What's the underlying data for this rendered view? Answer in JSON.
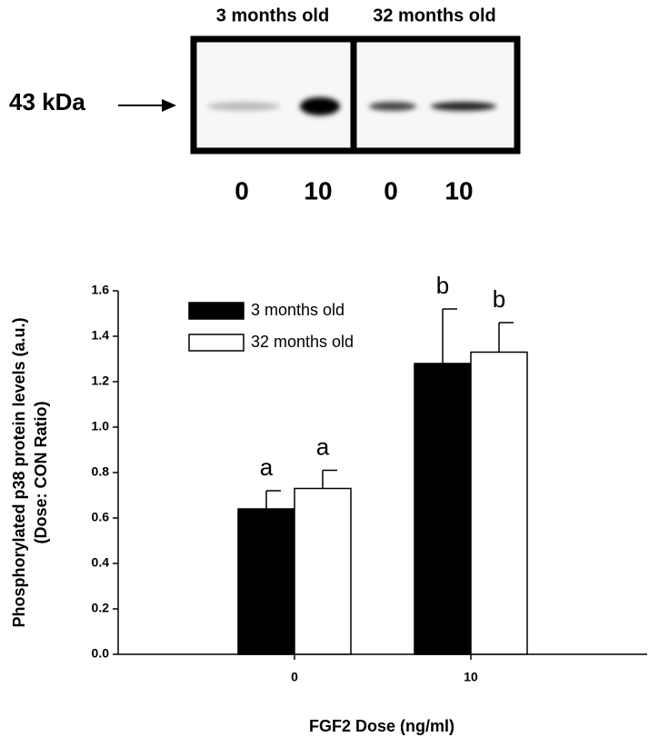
{
  "blot": {
    "groups": [
      "3 months old",
      "32 months old"
    ],
    "marker": "43 kDa",
    "lanes": [
      "0",
      "10",
      "0",
      "10"
    ]
  },
  "chart_data": {
    "type": "bar",
    "ylabel": [
      "Phosphorylated p38 protein levels (a.u.)",
      "(Dose: CON Ratio)"
    ],
    "xlabel": "FGF2 Dose (ng/ml)",
    "categories": [
      "0",
      "10"
    ],
    "series": [
      {
        "name": "3 months old",
        "color": "#000000",
        "values": [
          0.64,
          1.28
        ],
        "errors": [
          0.08,
          0.24
        ],
        "labels": [
          "a",
          "b"
        ]
      },
      {
        "name": "32 months old",
        "color": "#ffffff",
        "values": [
          0.73,
          1.33
        ],
        "errors": [
          0.08,
          0.13
        ],
        "labels": [
          "a",
          "b"
        ]
      }
    ],
    "ylim": [
      0,
      1.6
    ],
    "yticks": [
      {
        "value": 0,
        "label": "0.0"
      },
      0.2,
      0.4,
      0.6,
      0.8,
      {
        "value": 1,
        "label": "1.0"
      },
      1.2,
      1.4,
      1.6
    ]
  }
}
